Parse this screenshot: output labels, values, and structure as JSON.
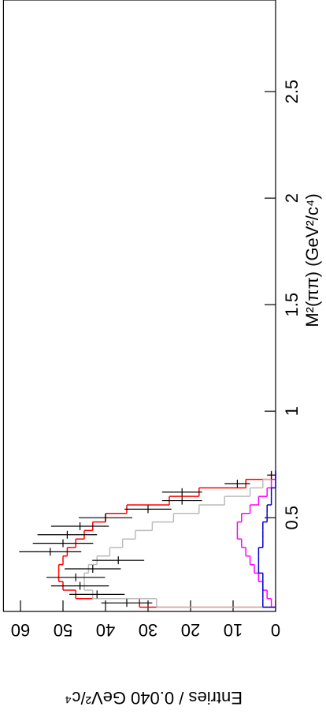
{
  "chart_data": {
    "type": "histogram",
    "xlabel": "M²(ππ) (GeV²/c⁴)",
    "ylabel": "Entries / 0.040 GeV²/c⁴",
    "bins": [
      0.08,
      0.12,
      0.16,
      0.2,
      0.24,
      0.28,
      0.32,
      0.36,
      0.4,
      0.44,
      0.48,
      0.52,
      0.56,
      0.6,
      0.64,
      0.68,
      0.72
    ],
    "data": {
      "color": "#000000",
      "values": [
        35,
        42,
        46,
        47,
        43,
        37,
        53,
        50,
        49,
        46,
        40,
        30,
        22,
        22,
        9,
        1
      ],
      "errors": [
        6,
        6.5,
        6.8,
        6.9,
        6.6,
        6.1,
        7.3,
        7.1,
        7,
        6.8,
        6.3,
        5.5,
        4.7,
        4.7,
        3,
        1
      ]
    },
    "series": [
      {
        "color": "#ff0000",
        "values": [
          32,
          47,
          50,
          51,
          51,
          50,
          49,
          47,
          45,
          43,
          40,
          35,
          25,
          18,
          7,
          1
        ]
      },
      {
        "color": "#bbbbbb",
        "values": [
          28,
          43,
          45,
          45,
          44,
          42,
          39,
          36,
          33,
          29,
          24,
          18,
          12,
          6,
          3,
          1
        ]
      },
      {
        "color": "#ff00ff",
        "values": [
          1,
          2,
          3,
          4,
          5,
          6,
          7,
          8,
          9,
          9,
          8,
          6,
          4,
          2,
          1,
          0
        ]
      },
      {
        "color": "#0000cc",
        "values": [
          3,
          3,
          3,
          3,
          4,
          4,
          4,
          3,
          3,
          3,
          2,
          2,
          1,
          1,
          0,
          0
        ]
      }
    ],
    "xlim": [
      0.06,
      2.93
    ],
    "xticks": [
      0.5,
      1,
      1.5,
      2,
      2.5
    ],
    "ylim": [
      0,
      64
    ],
    "yticks": [
      0,
      10,
      20,
      30,
      40,
      50,
      60
    ]
  }
}
